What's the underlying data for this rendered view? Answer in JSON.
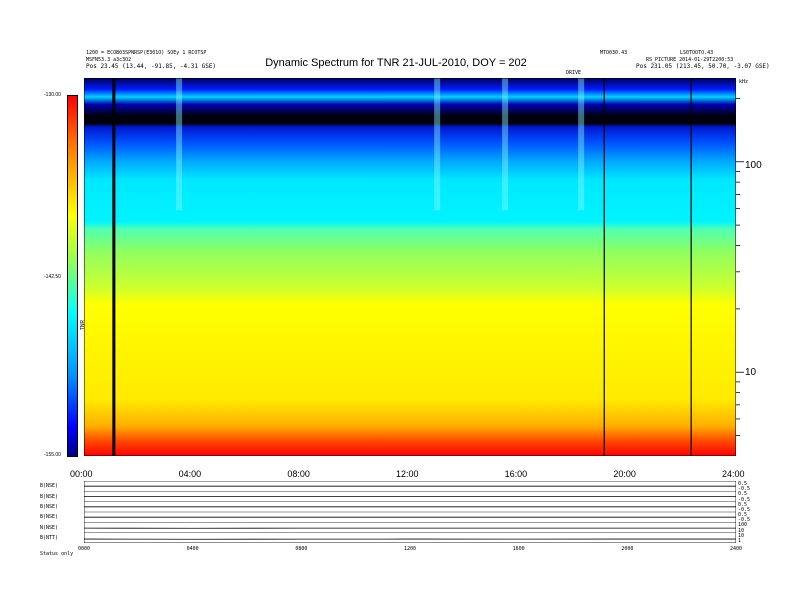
{
  "title": "Dynamic Spectrum for TNR 21-JUL-2010, DOY = 202",
  "header": {
    "left_line1": "1200 = ECOB03SPNRSP(E301O) SOEy 1 RCOTSP",
    "left_line2": "MSFN53.3 a3c3O2",
    "left_line3": "Pos  23.45 (13.44, -91.85, -4.31 GSE)",
    "right_line1": "MTO030.43",
    "right_line2": "LS0TOOTO.43",
    "right_line3": "RS_PICTURE 2014-01-29T2200:53",
    "right_line4": "Pos  231.05 (213.45, 50.70, -3.07 GSE)",
    "top_right_tag": "kHz",
    "event_tag": "DRIVE"
  },
  "colorbar": {
    "top_label": "-130.00",
    "mid_label": "-142.50",
    "bottom_label": "-155.00",
    "unit_label": "TNR",
    "colors": [
      "#ff0000",
      "#ff7a00",
      "#ffff00",
      "#9aff50",
      "#00ffff",
      "#0090ff",
      "#0000ff",
      "#00008b"
    ]
  },
  "chart_data": [
    {
      "type": "heatmap",
      "title": "Dynamic Spectrum for TNR 21-JUL-2010, DOY = 202",
      "xlabel": "",
      "ylabel": "kHz",
      "x_ticks": [
        "00:00",
        "04:00",
        "08:00",
        "12:00",
        "16:00",
        "20:00",
        "24:00"
      ],
      "y_ticks": [
        "100",
        "10"
      ],
      "y_scale": "log",
      "ylim": [
        4,
        250
      ],
      "xlim_hours": [
        0,
        24
      ],
      "color_range": [
        -155.0,
        -130.0
      ],
      "band_profile": [
        {
          "freq_khz": 230,
          "level": -154
        },
        {
          "freq_khz": 200,
          "level": -152
        },
        {
          "freq_khz": 170,
          "level": -155
        },
        {
          "freq_khz": 140,
          "level": -151
        },
        {
          "freq_khz": 115,
          "level": -148
        },
        {
          "freq_khz": 90,
          "level": -144
        },
        {
          "freq_khz": 60,
          "level": -141
        },
        {
          "freq_khz": 35,
          "level": -138
        },
        {
          "freq_khz": 20,
          "level": -136
        },
        {
          "freq_khz": 12,
          "level": -135
        },
        {
          "freq_khz": 7,
          "level": -133
        },
        {
          "freq_khz": 5,
          "level": -130
        }
      ],
      "data_gaps_hours": [
        1.1,
        19.15,
        22.35
      ],
      "features": [
        {
          "label": "burst",
          "time_hours": 3.5
        },
        {
          "label": "burst",
          "time_hours": 13.0
        },
        {
          "label": "burst",
          "time_hours": 15.5
        },
        {
          "label": "burst",
          "time_hours": 18.3
        }
      ]
    },
    {
      "type": "line",
      "panel": "bottom-stack",
      "series": [
        {
          "name": "B(NSE)",
          "right_labels": [
            "0.5",
            "-0.5"
          ],
          "values_level": [
            0,
            0,
            0,
            0,
            0,
            0,
            0
          ]
        },
        {
          "name": "B(NSE)",
          "right_labels": [
            "0.5",
            "-0.5"
          ],
          "values_level": [
            0,
            0,
            0,
            0,
            0,
            0,
            0
          ]
        },
        {
          "name": "B(NSE)",
          "right_labels": [
            "0.5",
            "-0.5"
          ],
          "values_level": [
            0,
            0,
            0,
            0,
            0,
            0,
            0
          ]
        },
        {
          "name": "B(NSE)",
          "right_labels": [
            "0.5",
            "-0.5"
          ],
          "values_level": [
            0,
            0,
            0,
            0,
            0,
            0,
            0
          ]
        },
        {
          "name": "N(NSE)",
          "right_labels": [
            "100",
            "10"
          ],
          "values_level": [
            0.2,
            0.25,
            0.2,
            0.2,
            0.2,
            0.2,
            0.2
          ]
        },
        {
          "name": "B(NTT)",
          "right_labels": [
            "10",
            "1"
          ],
          "values_level": [
            0.4,
            0.45,
            0.42,
            0.4,
            0.41,
            0.4,
            0.4
          ]
        }
      ],
      "x_ticks": [
        "0000",
        "0400",
        "0800",
        "1200",
        "1600",
        "2000",
        "2400"
      ],
      "footer_label": "Status  only"
    }
  ]
}
